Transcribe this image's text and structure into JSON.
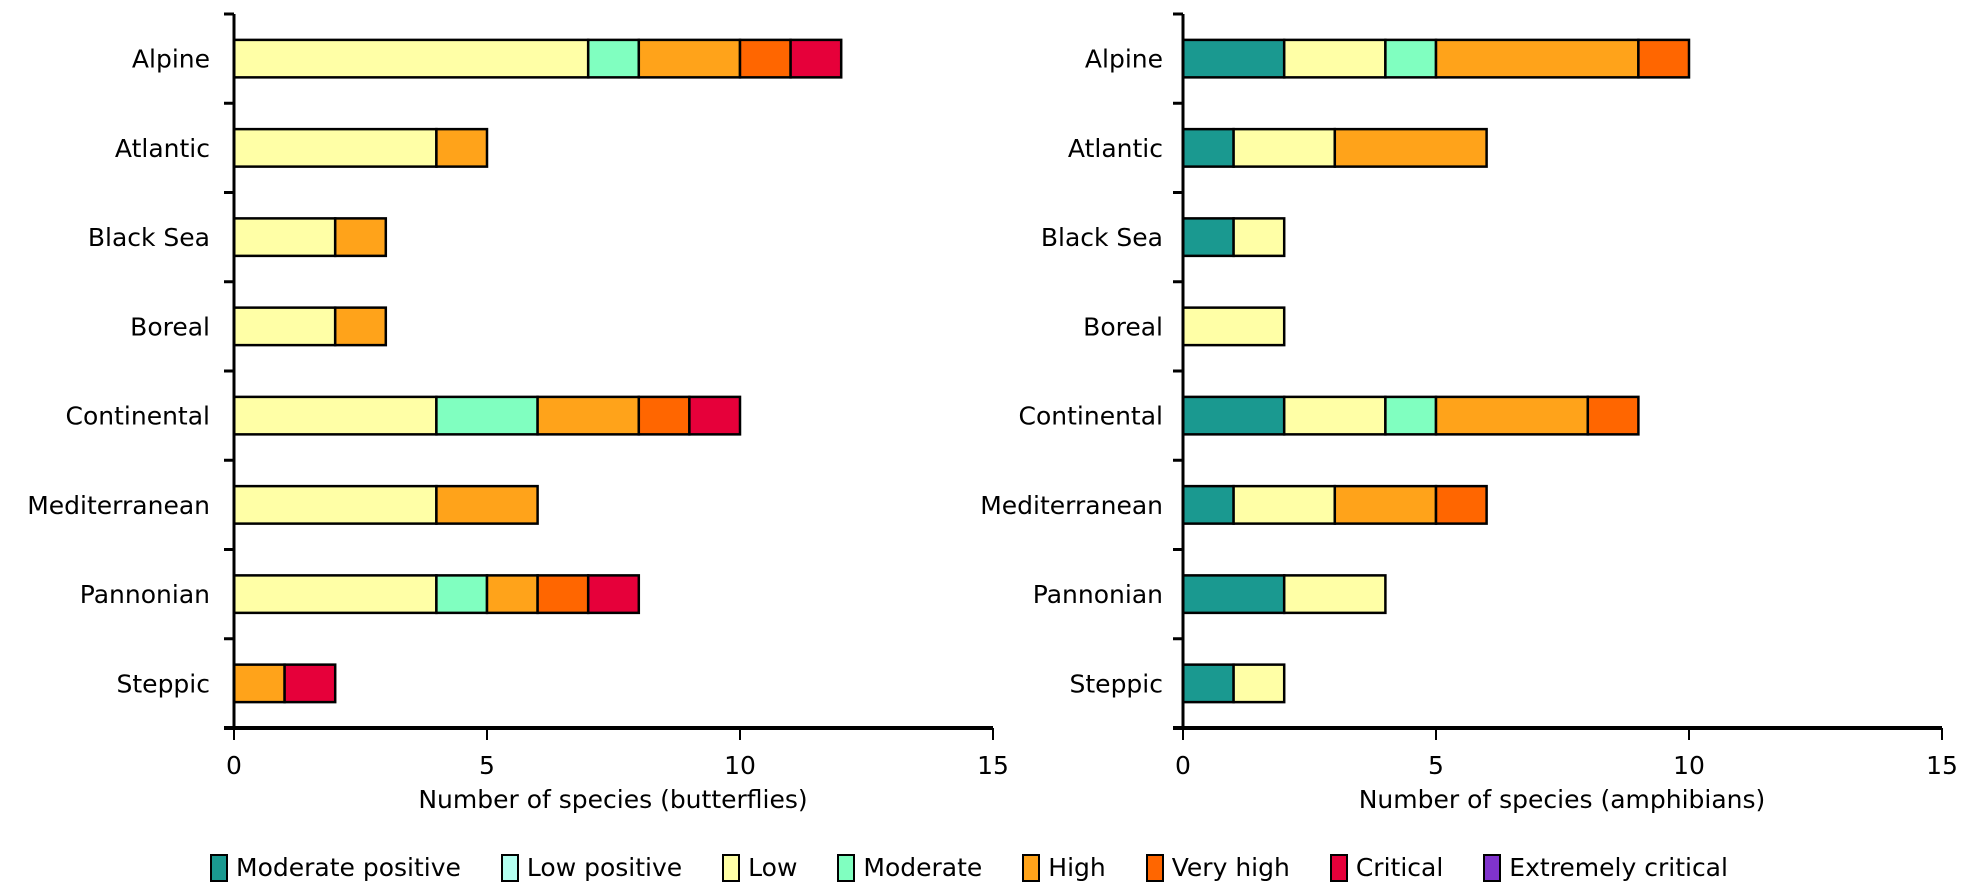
{
  "chart_data": [
    {
      "type": "bar",
      "orientation": "horizontal",
      "stacked": true,
      "title": "",
      "xlabel": "Number of species (butterflies)",
      "ylabel": "",
      "xlim": [
        0,
        15
      ],
      "xticks": [
        0,
        5,
        10,
        15
      ],
      "grid": false,
      "categories": [
        "Alpine",
        "Atlantic",
        "Black Sea",
        "Boreal",
        "Continental",
        "Mediterranean",
        "Pannonian",
        "Steppic"
      ],
      "series": [
        {
          "name": "Moderate positive",
          "values": [
            0,
            0,
            0,
            0,
            0,
            0,
            0,
            0
          ]
        },
        {
          "name": "Low positive",
          "values": [
            0,
            0,
            0,
            0,
            0,
            0,
            0,
            0
          ]
        },
        {
          "name": "Low",
          "values": [
            7,
            4,
            2,
            2,
            4,
            4,
            4,
            0
          ]
        },
        {
          "name": "Moderate",
          "values": [
            1,
            0,
            0,
            0,
            2,
            0,
            1,
            0
          ]
        },
        {
          "name": "High",
          "values": [
            2,
            1,
            1,
            1,
            2,
            2,
            1,
            1
          ]
        },
        {
          "name": "Very high",
          "values": [
            1,
            0,
            0,
            0,
            1,
            0,
            1,
            0
          ]
        },
        {
          "name": "Critical",
          "values": [
            1,
            0,
            0,
            0,
            1,
            0,
            1,
            1
          ]
        },
        {
          "name": "Extremely critical",
          "values": [
            0,
            0,
            0,
            0,
            0,
            0,
            0,
            0
          ]
        }
      ]
    },
    {
      "type": "bar",
      "orientation": "horizontal",
      "stacked": true,
      "title": "",
      "xlabel": "Number of species (amphibians)",
      "ylabel": "",
      "xlim": [
        0,
        15
      ],
      "xticks": [
        0,
        5,
        10,
        15
      ],
      "grid": false,
      "categories": [
        "Alpine",
        "Atlantic",
        "Black Sea",
        "Boreal",
        "Continental",
        "Mediterranean",
        "Pannonian",
        "Steppic"
      ],
      "series": [
        {
          "name": "Moderate positive",
          "values": [
            2,
            1,
            1,
            0,
            2,
            1,
            2,
            1
          ]
        },
        {
          "name": "Low positive",
          "values": [
            0,
            0,
            0,
            0,
            0,
            0,
            0,
            0
          ]
        },
        {
          "name": "Low",
          "values": [
            2,
            2,
            1,
            2,
            2,
            2,
            2,
            1
          ]
        },
        {
          "name": "Moderate",
          "values": [
            1,
            0,
            0,
            0,
            1,
            0,
            0,
            0
          ]
        },
        {
          "name": "High",
          "values": [
            4,
            3,
            0,
            0,
            3,
            2,
            0,
            0
          ]
        },
        {
          "name": "Very high",
          "values": [
            1,
            0,
            0,
            0,
            1,
            1,
            0,
            0
          ]
        },
        {
          "name": "Critical",
          "values": [
            0,
            0,
            0,
            0,
            0,
            0,
            0,
            0
          ]
        },
        {
          "name": "Extremely critical",
          "values": [
            0,
            0,
            0,
            0,
            0,
            0,
            0,
            0
          ]
        }
      ]
    }
  ],
  "legend": {
    "placement": "bottom",
    "items": [
      {
        "label": "Moderate positive",
        "color": "#1a9990"
      },
      {
        "label": "Low positive",
        "color": "#b3fff0"
      },
      {
        "label": "Low",
        "color": "#ffffa6"
      },
      {
        "label": "Moderate",
        "color": "#80ffc0"
      },
      {
        "label": "High",
        "color": "#ffa31a"
      },
      {
        "label": "Very high",
        "color": "#ff6600"
      },
      {
        "label": "Critical",
        "color": "#e6003a"
      },
      {
        "label": "Extremely critical",
        "color": "#8033cc"
      }
    ]
  }
}
